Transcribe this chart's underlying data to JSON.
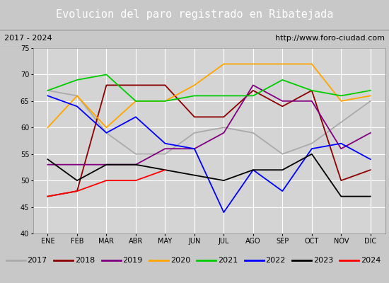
{
  "title": "Evolucion del paro registrado en Ribatejada",
  "subtitle_left": "2017 - 2024",
  "subtitle_right": "http://www.foro-ciudad.com",
  "months": [
    "ENE",
    "FEB",
    "MAR",
    "ABR",
    "MAY",
    "JUN",
    "JUL",
    "AGO",
    "SEP",
    "OCT",
    "NOV",
    "DIC"
  ],
  "ylim": [
    40,
    75
  ],
  "yticks": [
    40,
    45,
    50,
    55,
    60,
    65,
    70,
    75
  ],
  "series": {
    "2017": {
      "color": "#aaaaaa",
      "values": [
        67,
        66,
        59,
        55,
        55,
        59,
        60,
        59,
        55,
        57,
        61,
        65
      ]
    },
    "2018": {
      "color": "#8b0000",
      "values": [
        47,
        48,
        68,
        68,
        68,
        62,
        62,
        67,
        64,
        67,
        50,
        52
      ]
    },
    "2019": {
      "color": "#800080",
      "values": [
        53,
        53,
        53,
        53,
        56,
        56,
        59,
        68,
        65,
        65,
        56,
        59
      ]
    },
    "2020": {
      "color": "#ffa500",
      "values": [
        60,
        66,
        60,
        65,
        65,
        68,
        72,
        72,
        72,
        72,
        65,
        66
      ]
    },
    "2021": {
      "color": "#00cc00",
      "values": [
        67,
        69,
        70,
        65,
        65,
        66,
        66,
        66,
        69,
        67,
        66,
        67
      ]
    },
    "2022": {
      "color": "#0000ff",
      "values": [
        66,
        64,
        59,
        62,
        57,
        56,
        44,
        52,
        48,
        56,
        57,
        54
      ]
    },
    "2023": {
      "color": "#000000",
      "values": [
        54,
        50,
        53,
        53,
        52,
        51,
        50,
        52,
        52,
        55,
        47,
        47
      ]
    },
    "2024": {
      "color": "#ff0000",
      "values": [
        47,
        48,
        50,
        50,
        52,
        null,
        null,
        null,
        null,
        null,
        null,
        null
      ]
    }
  },
  "fig_width": 5.5,
  "fig_height": 4.0,
  "dpi": 100,
  "background_color": "#c8c8c8",
  "plot_bg_color": "#d4d4d4",
  "title_bg_color": "#4a6fa5",
  "title_text_color": "#ffffff",
  "subtitle_bg_color": "#e8e8e8",
  "grid_color": "#ffffff",
  "legend_bg_color": "#f0f0f0",
  "title_fontsize": 11,
  "subtitle_fontsize": 8,
  "tick_fontsize": 7,
  "legend_fontsize": 8
}
